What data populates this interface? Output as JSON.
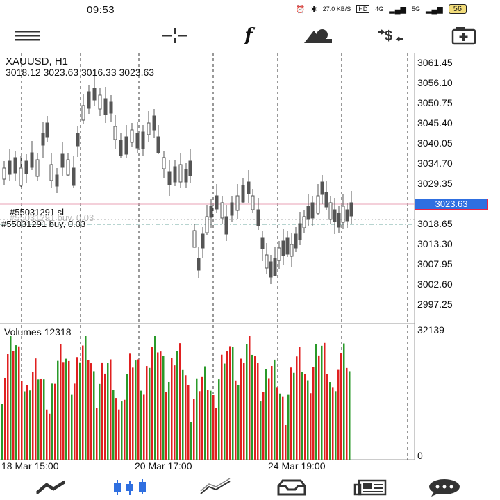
{
  "status_bar": {
    "time": "09:53",
    "net_speed": "27.0 KB/S",
    "hd": "HD",
    "signal1": "4G",
    "signal2": "5G",
    "battery": "56"
  },
  "toolbar": {
    "items": [
      {
        "name": "menu-icon"
      },
      {
        "name": "crosshair-icon"
      },
      {
        "name": "function-icon",
        "glyph": "f"
      },
      {
        "name": "objects-icon"
      },
      {
        "name": "trade-icon",
        "glyph": "$"
      },
      {
        "name": "new-order-icon"
      }
    ]
  },
  "chart": {
    "symbol": "XAUUSD, H1",
    "ohlc": "3018.12 3023.63 3016.33 3023.63",
    "current_price": "3023.63",
    "order_sl": "#55031291 sl",
    "order_sl_overlap": "#55031291 buy, 0.03",
    "order_buy": "#55031291 buy, 0.03",
    "price_axis": [
      "3061.45",
      "3056.10",
      "3050.75",
      "3045.40",
      "3040.05",
      "3034.70",
      "3029.35",
      "3018.65",
      "3013.30",
      "3007.95",
      "3002.60",
      "2997.25"
    ],
    "volume_title": "Volumes 12318",
    "volume_axis_max": "32139",
    "volume_axis_min": "0",
    "time_labels": [
      "18 Mar 15:00",
      "20 Mar 17:00",
      "24 Mar 19:00"
    ],
    "colors": {
      "up": "#2a9a2a",
      "down": "#e02020",
      "candle": "#555555",
      "current": "#2f6fe0",
      "sl_line": "#e8a0b4",
      "buy_line": "#6fa8a0"
    }
  },
  "bottom_nav": {
    "items": [
      {
        "name": "quotes-nav-icon"
      },
      {
        "name": "chart-nav-icon"
      },
      {
        "name": "trade-nav-icon"
      },
      {
        "name": "history-nav-icon"
      },
      {
        "name": "news-nav-icon"
      },
      {
        "name": "messages-nav-icon"
      }
    ]
  }
}
